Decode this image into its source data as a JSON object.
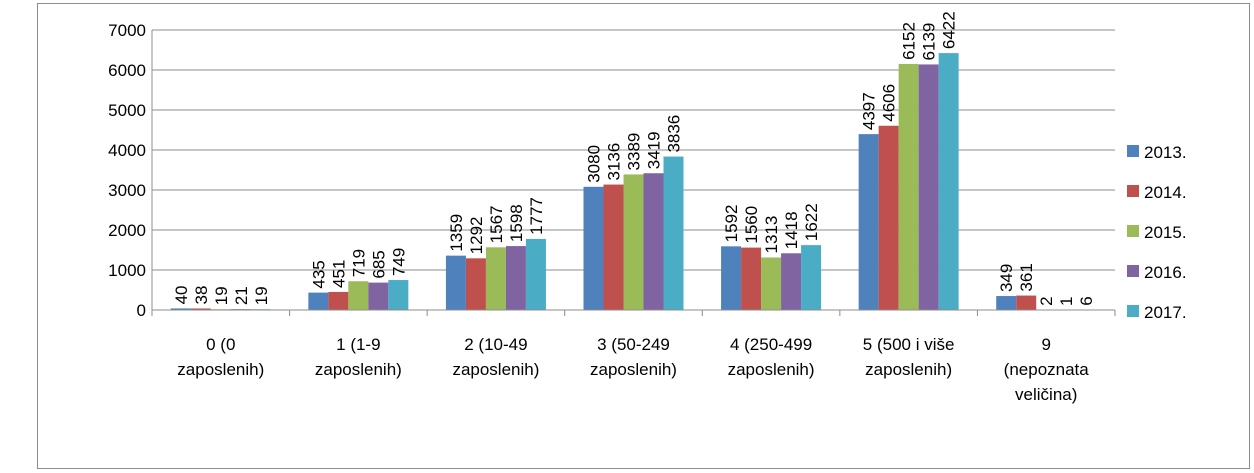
{
  "chart_data": {
    "type": "bar",
    "title": "",
    "xlabel": "",
    "ylabel": "",
    "ylim": [
      0,
      7000
    ],
    "yticks": [
      0,
      1000,
      2000,
      3000,
      4000,
      5000,
      6000,
      7000
    ],
    "grid": true,
    "legend_position": "right",
    "categories": [
      [
        "0 (0",
        "zaposlenih)"
      ],
      [
        "1 (1-9",
        "zaposlenih)"
      ],
      [
        "2 (10-49",
        "zaposlenih)"
      ],
      [
        "3 (50-249",
        "zaposlenih)"
      ],
      [
        "4 (250-499",
        "zaposlenih)"
      ],
      [
        "5 (500 i više",
        "zaposlenih)"
      ],
      [
        "9",
        "(nepoznata",
        "veličina)"
      ]
    ],
    "series": [
      {
        "name": "2013.",
        "color": "#4F81BD",
        "values": [
          40,
          435,
          1359,
          3080,
          1592,
          4397,
          349
        ]
      },
      {
        "name": "2014.",
        "color": "#C0504D",
        "values": [
          38,
          451,
          1292,
          3136,
          1560,
          4606,
          361
        ]
      },
      {
        "name": "2015.",
        "color": "#9BBB59",
        "values": [
          19,
          719,
          1567,
          3389,
          1313,
          6152,
          2
        ]
      },
      {
        "name": "2016.",
        "color": "#8064A2",
        "values": [
          21,
          685,
          1598,
          3419,
          1418,
          6139,
          1
        ]
      },
      {
        "name": "2017.",
        "color": "#4BACC6",
        "values": [
          19,
          749,
          1777,
          3836,
          1622,
          6422,
          6
        ]
      }
    ]
  }
}
